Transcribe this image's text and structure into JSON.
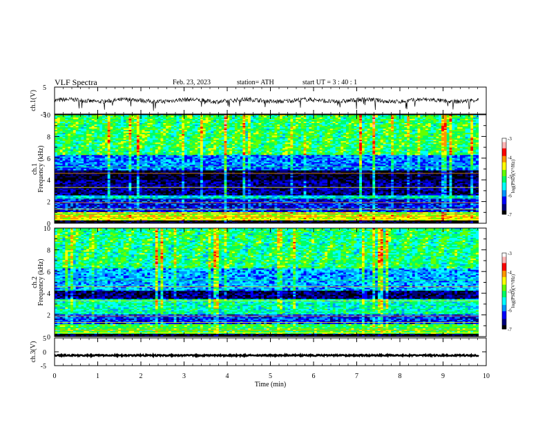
{
  "header": {
    "title": "VLF  Spectra",
    "date": "Feb. 23, 2023",
    "station": "station= ATH",
    "start": "start  UT  =   3  : 40 : 1"
  },
  "chart_data": [
    {
      "type": "line",
      "panel": "ch1-waveform",
      "ylabel": "ch.1(V)",
      "ylim": [
        -5,
        5
      ],
      "yticks": [
        "5",
        "-5"
      ],
      "xlim": [
        0,
        10
      ],
      "x_end": 9.82,
      "baseline": 0,
      "description_values": "noisy waveform centered near 0 V with spikes to about -2.5 V"
    },
    {
      "type": "heatmap",
      "panel": "ch1-spectrogram",
      "ylabel": "ch.1\nFrequency  (kHz)",
      "ylim": [
        0,
        10
      ],
      "yticks": [
        "0",
        "2",
        "4",
        "6",
        "8",
        "10"
      ],
      "xlim": [
        0,
        10
      ],
      "x_end": 9.82,
      "bands_kHz": [
        {
          "from": 0,
          "to": 0.3,
          "level": -7
        },
        {
          "from": 0.3,
          "to": 1.0,
          "level": -4.5
        },
        {
          "from": 1.0,
          "to": 2.3,
          "level": -6.3
        },
        {
          "from": 2.3,
          "to": 2.6,
          "level": -5.6
        },
        {
          "from": 2.6,
          "to": 4.0,
          "level": -6.6
        },
        {
          "from": 4.0,
          "to": 4.9,
          "level": -6.9
        },
        {
          "from": 4.9,
          "to": 6.3,
          "level": -6.0
        },
        {
          "from": 6.3,
          "to": 10,
          "level": -5.1
        }
      ],
      "colorbar": {
        "label": "log(PSD)(V²/Hz)",
        "ticks": [
          "-3",
          "-4",
          "-5",
          "-6",
          "-7"
        ],
        "range": [
          -7,
          -3
        ]
      }
    },
    {
      "type": "heatmap",
      "panel": "ch2-spectrogram",
      "ylabel": "ch.2\nFrequency  (kHz)",
      "ylim": [
        0,
        10
      ],
      "yticks": [
        "0",
        "2",
        "4",
        "6",
        "8",
        "10"
      ],
      "xlim": [
        0,
        10
      ],
      "x_end": 9.82,
      "bands_kHz": [
        {
          "from": 0,
          "to": 0.3,
          "level": -7
        },
        {
          "from": 0.3,
          "to": 1.2,
          "level": -5.0
        },
        {
          "from": 1.2,
          "to": 2.0,
          "level": -6.2
        },
        {
          "from": 2.0,
          "to": 3.4,
          "level": -5.4
        },
        {
          "from": 3.4,
          "to": 4.2,
          "level": -6.7
        },
        {
          "from": 4.2,
          "to": 6.3,
          "level": -5.8
        },
        {
          "from": 6.3,
          "to": 10,
          "level": -5.2
        }
      ],
      "colorbar": {
        "label": "log(PSD)(V²/Hz)",
        "ticks": [
          "-3",
          "-4",
          "-5",
          "-6",
          "-7"
        ],
        "range": [
          -7,
          -3
        ]
      }
    },
    {
      "type": "line",
      "panel": "ch3-waveform",
      "ylabel": "ch.3(V)",
      "ylim": [
        -5,
        5
      ],
      "yticks": [
        "5",
        "0",
        "-5"
      ],
      "xlim": [
        0,
        10
      ],
      "x_end": 9.82,
      "baseline": -1.3,
      "xlabel": "Time  (min)",
      "xticks": [
        "0",
        "1",
        "2",
        "3",
        "4",
        "5",
        "6",
        "7",
        "8",
        "9",
        "10"
      ]
    }
  ],
  "colors": {
    "colormap": [
      "#000000",
      "#00007a",
      "#0000ff",
      "#0096ff",
      "#00ffff",
      "#00ff64",
      "#64ff00",
      "#ffff00",
      "#ff9600",
      "#ff0000",
      "#ffb4b4",
      "#ffffff"
    ]
  }
}
